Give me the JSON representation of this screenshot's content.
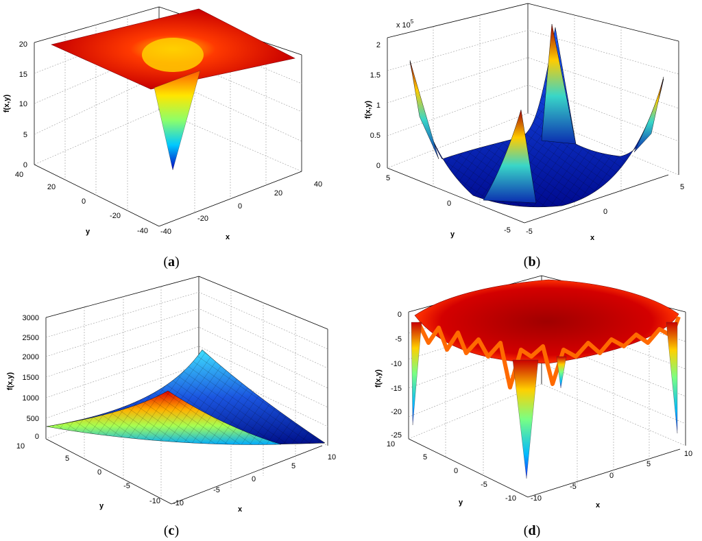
{
  "figure": {
    "caption_open": "(",
    "caption_close": ")"
  },
  "colors": {
    "surface_low": "#00007f",
    "surface_high": "#7f0000",
    "mesh": "#000000",
    "grid": "#9a9a9a"
  },
  "chart_data": [
    {
      "panel": "a",
      "type": "surface",
      "caption": "a",
      "zlabel": "f(x,y)",
      "xlabel": "x",
      "ylabel": "y",
      "ztick_labels": [
        "0",
        "5",
        "10",
        "15",
        "20"
      ],
      "xtick_labels": [
        "-40",
        "-20",
        "0",
        "20",
        "40"
      ],
      "ytick_labels": [
        "-40",
        "-20",
        "0",
        "20",
        "40"
      ],
      "xlim": [
        -40,
        40
      ],
      "ylim": [
        -40,
        40
      ],
      "zlim": [
        0,
        20
      ],
      "surface": "flat plateau near 20 with a deep cone-shaped well dropping to 0 at the center (0,0)",
      "grid": true,
      "colormap": "jet"
    },
    {
      "panel": "b",
      "type": "surface",
      "caption": "b",
      "zlabel": "f(x,y)",
      "xlabel": "x",
      "ylabel": "y",
      "zscale_label": "x 10",
      "zscale_exponent": "5",
      "ztick_labels": [
        "0",
        "0.5",
        "1",
        "1.5",
        "2"
      ],
      "xtick_labels": [
        "-5",
        "0",
        "5"
      ],
      "ytick_labels": [
        "-5",
        "0",
        "5"
      ],
      "xlim": [
        -5,
        5
      ],
      "ylim": [
        -5,
        5
      ],
      "zlim": [
        0,
        200000
      ],
      "surface": "bowl-shaped valley near 0 rising to peaks at the four corners (max ~2e5)",
      "grid": true,
      "colormap": "jet"
    },
    {
      "panel": "c",
      "type": "surface",
      "caption": "c",
      "zlabel": "f(x,y)",
      "xlabel": "x",
      "ylabel": "y",
      "ztick_labels": [
        "0",
        "500",
        "1000",
        "1500",
        "2000",
        "2500",
        "3000"
      ],
      "xtick_labels": [
        "-10",
        "-5",
        "0",
        "5",
        "10"
      ],
      "ytick_labels": [
        "-10",
        "-5",
        "0",
        "5",
        "10"
      ],
      "xlim": [
        -10,
        10
      ],
      "ylim": [
        -10,
        10
      ],
      "zlim": [
        0,
        3000
      ],
      "surface": "saddle-like sheet, low along edges, rising to ~2200 at the back corner",
      "grid": true,
      "colormap": "jet"
    },
    {
      "panel": "d",
      "type": "surface",
      "caption": "d",
      "zlabel": "f(x,y)",
      "xlabel": "x",
      "ylabel": "y",
      "ztick_labels": [
        "-25",
        "-20",
        "-15",
        "-10",
        "-5",
        "0"
      ],
      "xtick_labels": [
        "-10",
        "-5",
        "0",
        "5",
        "10"
      ],
      "ytick_labels": [
        "-10",
        "-5",
        "0",
        "5",
        "10"
      ],
      "xlim": [
        -10,
        10
      ],
      "ylim": [
        -10,
        10
      ],
      "zlim": [
        -25,
        0
      ],
      "surface": "rippled plateau near 0 with sharp downward spikes to about -22 near the edges",
      "grid": true,
      "colormap": "jet"
    }
  ]
}
